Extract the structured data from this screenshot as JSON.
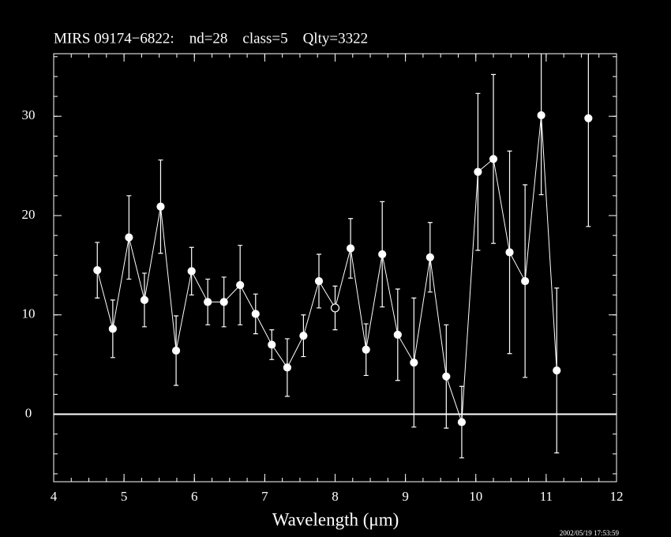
{
  "chart_data": {
    "type": "scatter",
    "title": "MIRS 09174−6822:    nd=28    class=5    Qlty=3322",
    "x_label": "Wavelength (μm)",
    "timestamp": "2002/05/19 17:53:59",
    "x": [
      4.62,
      4.84,
      5.07,
      5.29,
      5.52,
      5.74,
      5.96,
      6.19,
      6.42,
      6.65,
      6.87,
      7.1,
      7.32,
      7.55,
      7.77,
      8.0,
      8.22,
      8.44,
      8.67,
      8.89,
      9.12,
      9.35,
      9.58,
      9.8,
      10.03,
      10.25,
      10.48,
      10.7,
      10.93,
      11.15,
      11.6
    ],
    "series": [
      {
        "color": "#ffffff",
        "values": [
          14.5,
          8.6,
          17.8,
          11.5,
          20.9,
          6.4,
          14.4,
          11.3,
          11.3,
          13.0,
          10.1,
          7.0,
          4.7,
          7.9,
          13.4,
          10.7,
          16.7,
          6.5,
          16.1,
          8.0,
          5.2,
          15.8,
          3.8,
          -0.8,
          24.4,
          25.7,
          16.3,
          13.4,
          30.1,
          4.4,
          29.8
        ],
        "errors": [
          2.8,
          2.9,
          4.2,
          2.7,
          4.7,
          3.5,
          2.4,
          2.3,
          2.5,
          4.0,
          2.0,
          1.5,
          2.9,
          2.1,
          2.7,
          2.2,
          3.0,
          2.6,
          5.3,
          4.6,
          6.5,
          3.5,
          5.2,
          3.6,
          7.9,
          8.5,
          10.2,
          9.7,
          8.0,
          8.3,
          10.9
        ],
        "open_markers": [
          15
        ]
      }
    ],
    "xlim": [
      4,
      12
    ],
    "xticks": [
      4,
      5,
      6,
      7,
      8,
      9,
      10,
      11,
      12
    ],
    "xminor": 0.25,
    "ylim": [
      -6.8,
      36.3
    ],
    "yticks": [
      0,
      10,
      20,
      30
    ],
    "yminor": 2,
    "hline": 0
  }
}
